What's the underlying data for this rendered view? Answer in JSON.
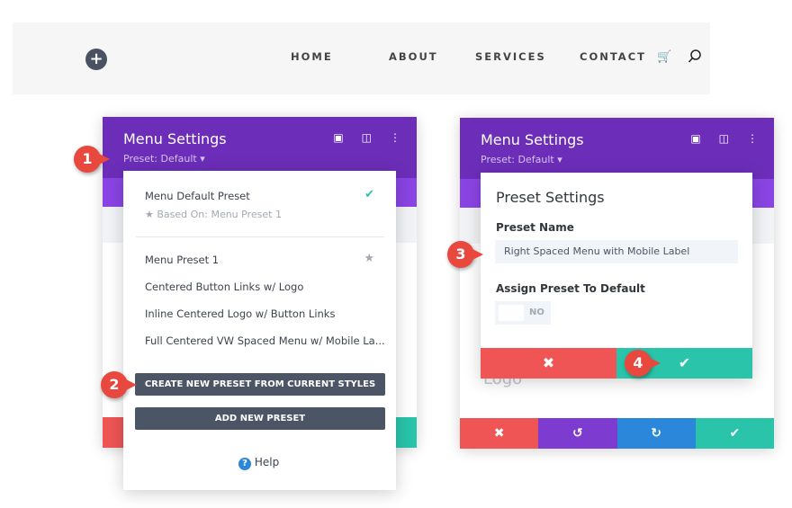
{
  "nav": {
    "items": [
      "HOME",
      "ABOUT",
      "SERVICES",
      "CONTACT"
    ],
    "add_icon": "plus-icon",
    "cart_icon": "cart-icon",
    "search_icon": "search-icon"
  },
  "left_panel": {
    "title": "Menu Settings",
    "preset": "Preset: Default ▾",
    "dropdown": {
      "default_preset": "Menu Default Preset",
      "based_on": "Based On: Menu Preset 1",
      "presets": [
        "Menu Preset 1",
        "Centered Button Links w/ Logo",
        "Inline Centered Logo w/ Button Links",
        "Full Centered VW Spaced Menu w/ Mobile La..."
      ],
      "create_button": "CREATE NEW PRESET FROM CURRENT STYLES",
      "add_button": "ADD NEW PRESET",
      "help": "Help"
    }
  },
  "right_panel": {
    "title": "Menu Settings",
    "preset": "Preset: Default ▾",
    "behind_label": "Logo",
    "modal": {
      "title": "Preset Settings",
      "name_label": "Preset Name",
      "name_value": "Right Spaced Menu with Mobile Label",
      "assign_label": "Assign Preset To Default",
      "toggle": "NO"
    }
  },
  "badges": [
    "1",
    "2",
    "3",
    "4"
  ],
  "colors": {
    "purple": "#6c2eb9",
    "red": "#ef5555",
    "teal": "#29c4a9",
    "blue": "#2b87da",
    "violet": "#7e3bd0"
  }
}
